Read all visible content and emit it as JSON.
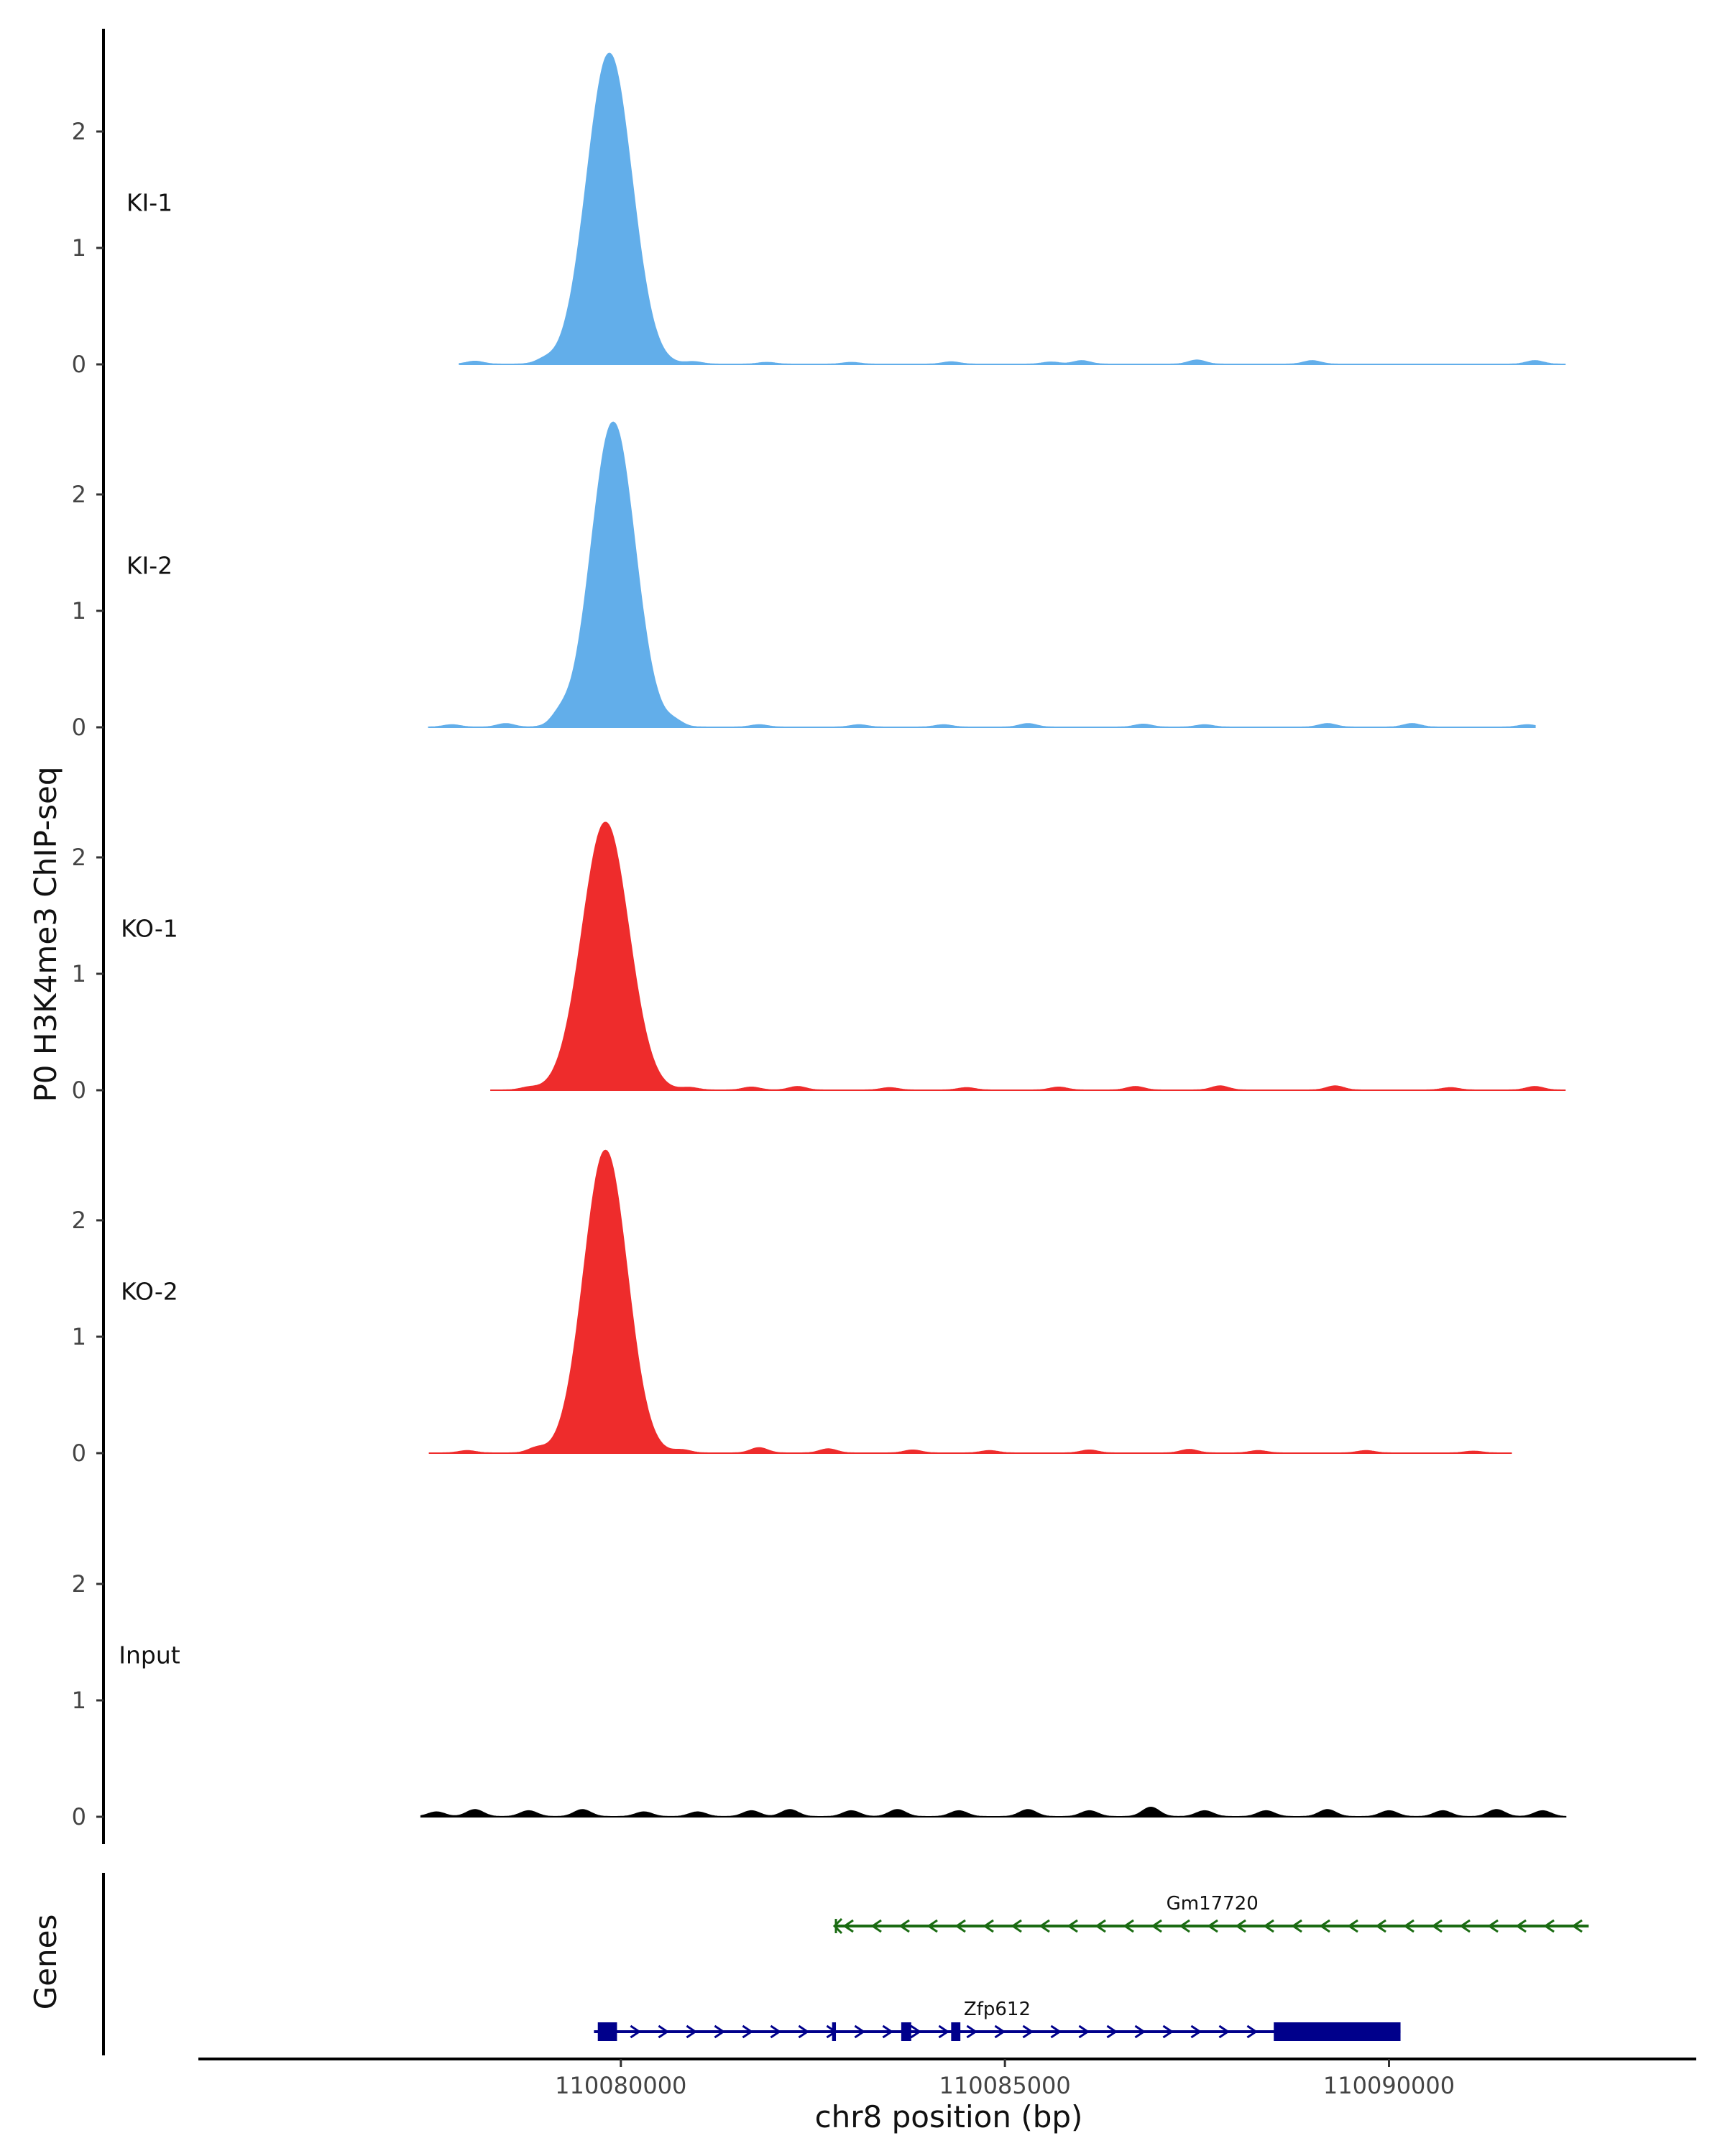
{
  "chart_data": {
    "type": "area",
    "title": "",
    "ylabel": "P0 H3K4me3 ChIP-seq",
    "xlabel": "chr8 position (bp)",
    "genes_label": "Genes",
    "xlim": [
      110074500,
      110094000
    ],
    "x_ticks": [
      110080000,
      110085000,
      110090000
    ],
    "x_tick_labels": [
      "110080000",
      "110085000",
      "110090000"
    ],
    "ylim": [
      0,
      2.7
    ],
    "y_ticks": [
      0,
      1,
      2
    ],
    "y_tick_labels": [
      "0",
      "1",
      "2"
    ],
    "colors": {
      "KI": "#62AEEA",
      "KO": "#EE2C2C",
      "Input": "#000000",
      "gene_minus": "#1A6B12",
      "gene_plus": "#00008B",
      "axis": "#000000"
    },
    "tracks": [
      {
        "name": "KI-1",
        "color": "#62AEEA",
        "start": 110077900,
        "end": 110092300,
        "peak": {
          "center": 110079850,
          "height": 2.67,
          "width_bp": 290
        },
        "bumps": [
          [
            110078100,
            0.025
          ],
          [
            110079000,
            0.03
          ],
          [
            110080950,
            0.02
          ],
          [
            110081900,
            0.015
          ],
          [
            110083000,
            0.015
          ],
          [
            110084300,
            0.02
          ],
          [
            110085600,
            0.018
          ],
          [
            110086000,
            0.03
          ],
          [
            110087500,
            0.035
          ],
          [
            110089000,
            0.03
          ],
          [
            110091900,
            0.03
          ]
        ]
      },
      {
        "name": "KI-2",
        "color": "#62AEEA",
        "start": 110077500,
        "end": 110091900,
        "peak": {
          "center": 110079900,
          "height": 2.62,
          "width_bp": 280
        },
        "bumps": [
          [
            110077800,
            0.02
          ],
          [
            110078500,
            0.03
          ],
          [
            110079200,
            0.07
          ],
          [
            110080700,
            0.04
          ],
          [
            110081800,
            0.02
          ],
          [
            110083100,
            0.02
          ],
          [
            110084200,
            0.02
          ],
          [
            110085300,
            0.03
          ],
          [
            110086800,
            0.025
          ],
          [
            110087600,
            0.02
          ],
          [
            110089200,
            0.03
          ],
          [
            110090300,
            0.03
          ],
          [
            110091800,
            0.02
          ]
        ]
      },
      {
        "name": "KO-1",
        "color": "#EE2C2C",
        "start": 110078300,
        "end": 110092300,
        "peak": {
          "center": 110079800,
          "height": 2.3,
          "width_bp": 300
        },
        "bumps": [
          [
            110078800,
            0.02
          ],
          [
            110080900,
            0.02
          ],
          [
            110081700,
            0.025
          ],
          [
            110082300,
            0.03
          ],
          [
            110083500,
            0.02
          ],
          [
            110084500,
            0.02
          ],
          [
            110085700,
            0.025
          ],
          [
            110086700,
            0.03
          ],
          [
            110087800,
            0.035
          ],
          [
            110089300,
            0.035
          ],
          [
            110090800,
            0.02
          ],
          [
            110091900,
            0.03
          ]
        ]
      },
      {
        "name": "KO-2",
        "color": "#EE2C2C",
        "start": 110077500,
        "end": 110091600,
        "peak": {
          "center": 110079800,
          "height": 2.6,
          "width_bp": 280
        },
        "bumps": [
          [
            110078000,
            0.02
          ],
          [
            110078900,
            0.04
          ],
          [
            110080800,
            0.025
          ],
          [
            110081800,
            0.045
          ],
          [
            110082700,
            0.035
          ],
          [
            110083800,
            0.025
          ],
          [
            110084800,
            0.02
          ],
          [
            110086100,
            0.025
          ],
          [
            110087400,
            0.03
          ],
          [
            110088300,
            0.02
          ],
          [
            110089700,
            0.02
          ],
          [
            110091100,
            0.015
          ]
        ]
      },
      {
        "name": "Input",
        "color": "#000000",
        "start": 110077400,
        "end": 110092300,
        "peak": null,
        "bumps": [
          [
            110077600,
            0.04
          ],
          [
            110078100,
            0.06
          ],
          [
            110078800,
            0.05
          ],
          [
            110079500,
            0.06
          ],
          [
            110080300,
            0.04
          ],
          [
            110081000,
            0.04
          ],
          [
            110081700,
            0.05
          ],
          [
            110082200,
            0.06
          ],
          [
            110083000,
            0.05
          ],
          [
            110083600,
            0.06
          ],
          [
            110084400,
            0.05
          ],
          [
            110085300,
            0.06
          ],
          [
            110086100,
            0.05
          ],
          [
            110086900,
            0.08
          ],
          [
            110087600,
            0.05
          ],
          [
            110088400,
            0.05
          ],
          [
            110089200,
            0.06
          ],
          [
            110090000,
            0.05
          ],
          [
            110090700,
            0.05
          ],
          [
            110091400,
            0.06
          ],
          [
            110092000,
            0.05
          ]
        ]
      }
    ],
    "genes": [
      {
        "name": "Gm17720",
        "strand": "-",
        "color": "#1A6B12",
        "start": 110082800,
        "end": 110092600,
        "exons": []
      },
      {
        "name": "Zfp612",
        "strand": "+",
        "color": "#00008B",
        "start": 110079650,
        "end": 110090150,
        "exons": [
          [
            110079700,
            110079950
          ],
          [
            110082750,
            110082800
          ],
          [
            110083650,
            110083780
          ],
          [
            110084300,
            110084420
          ],
          [
            110088500,
            110090150
          ]
        ]
      }
    ]
  }
}
